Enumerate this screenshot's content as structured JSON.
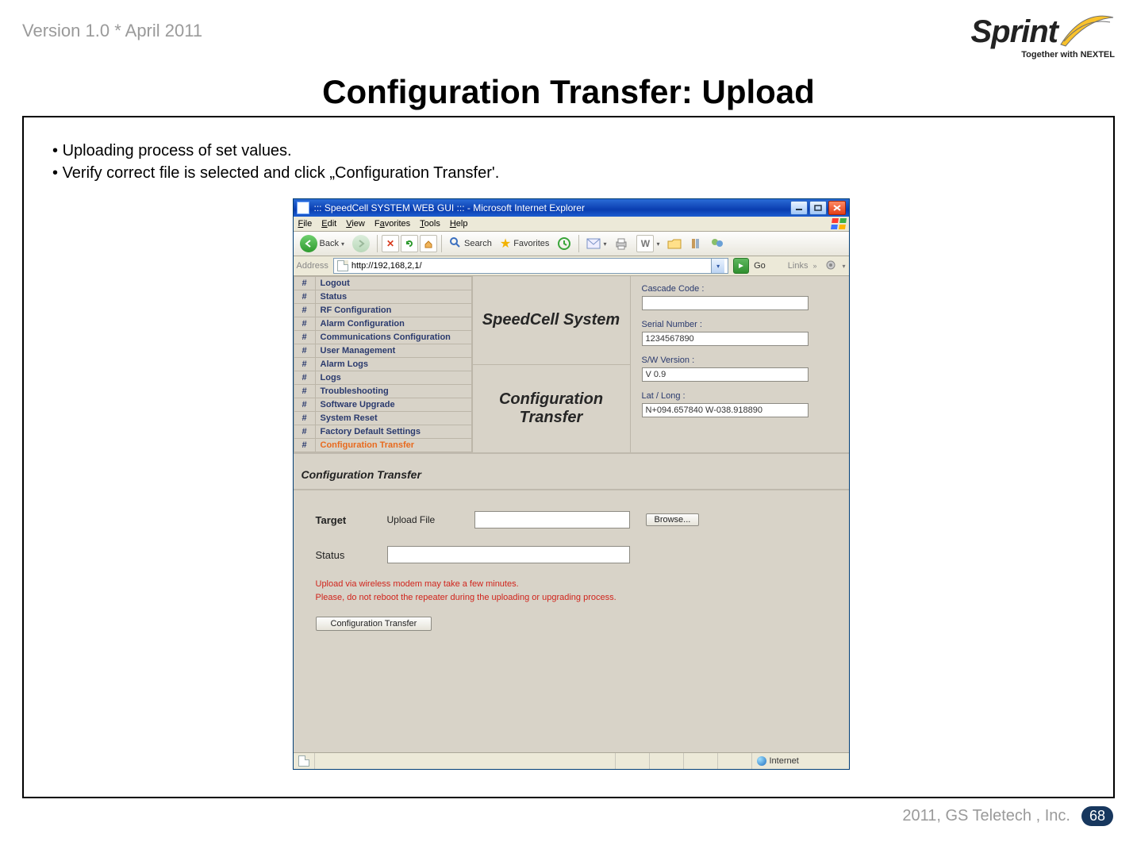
{
  "meta": {
    "version_line": "Version 1.0 * April 2011",
    "brand_name": "Sprint",
    "brand_tagline": "Together with NEXTEL",
    "footer_copyright": "2011, GS Teletech , Inc.",
    "page_number": "68",
    "swoosh_color": "#f9c22b",
    "swoosh_stroke": "#6f6f6f"
  },
  "slide": {
    "title": "Configuration Transfer: Upload",
    "bullets": [
      "Uploading process of set values.",
      "Verify correct file is selected and click „Configuration Transfer'."
    ]
  },
  "ie": {
    "title": "::: SpeedCell SYSTEM WEB GUI ::: - Microsoft Internet Explorer",
    "menus": [
      "File",
      "Edit",
      "View",
      "Favorites",
      "Tools",
      "Help"
    ],
    "back_label": "Back",
    "search_label": "Search",
    "favorites_label": "Favorites",
    "address_label": "Address",
    "url": "http://192,168,2,1/",
    "go_label": "Go",
    "links_label": "Links",
    "status_zone_label": "Internet",
    "colors": {
      "titlebar_gradient": [
        "#2a6cd6",
        "#0a3db0",
        "#1d5ed0"
      ],
      "chrome_bg": "#ece9d8",
      "content_bg": "#d8d3c8",
      "border": "#aca899",
      "link_text": "#2a3a6e",
      "selected_link": "#e86a1e",
      "back_btn": "#3aa53a",
      "fwd_btn": "#bfe0bf"
    }
  },
  "nav": {
    "items": [
      {
        "label": "Logout",
        "selected": false
      },
      {
        "label": "Status",
        "selected": false
      },
      {
        "label": "RF Configuration",
        "selected": false
      },
      {
        "label": "Alarm Configuration",
        "selected": false
      },
      {
        "label": "Communications Configuration",
        "selected": false
      },
      {
        "label": "User Management",
        "selected": false
      },
      {
        "label": "Alarm Logs",
        "selected": false
      },
      {
        "label": "Logs",
        "selected": false
      },
      {
        "label": "Troubleshooting",
        "selected": false
      },
      {
        "label": "Software Upgrade",
        "selected": false
      },
      {
        "label": "System Reset",
        "selected": false
      },
      {
        "label": "Factory Default Settings",
        "selected": false
      },
      {
        "label": "Configuration Transfer",
        "selected": true
      }
    ]
  },
  "center": {
    "heading1": "SpeedCell System",
    "heading2": "Configuration Transfer"
  },
  "info": {
    "cascade": {
      "label": "Cascade Code :",
      "value": ""
    },
    "serial": {
      "label": "Serial Number :",
      "value": "1234567890"
    },
    "version": {
      "label": "S/W Version :",
      "value": "V 0.9"
    },
    "latlong": {
      "label": "Lat / Long :",
      "value": "N+094.657840 W-038.918890"
    }
  },
  "section": {
    "title": "Configuration Transfer"
  },
  "form": {
    "target_label": "Target",
    "upload_file_label": "Upload File",
    "upload_file_value": "",
    "browse_label": "Browse...",
    "status_label": "Status",
    "status_value": "",
    "warning_line1": "Upload via wireless modem may take a few minutes.",
    "warning_line2": "Please, do not reboot the repeater during the uploading or upgrading process.",
    "submit_label": "Configuration Transfer",
    "warning_color": "#d0241c"
  }
}
